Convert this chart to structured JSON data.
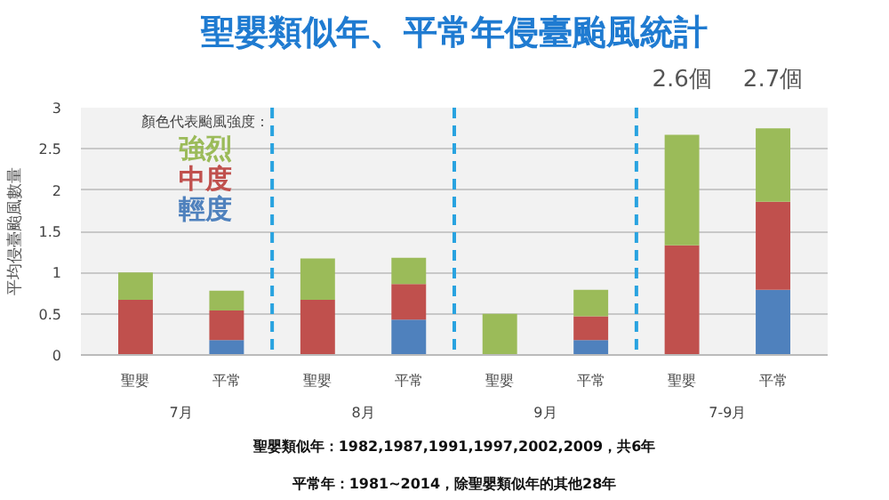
{
  "chart_data": {
    "type": "bar",
    "stacked": true,
    "title": "聖嬰類似年、平常年侵臺颱風統計",
    "ylabel": "平均侵臺颱風數量",
    "legend_title": "顏色代表颱風強度：",
    "categories": [
      "聖嬰",
      "平常",
      "聖嬰",
      "平常",
      "聖嬰",
      "平常",
      "聖嬰",
      "平常"
    ],
    "series": [
      {
        "name": "輕度",
        "color": "#4f81bd",
        "values": [
          0,
          0.18,
          0,
          0.43,
          0,
          0.18,
          0,
          0.79
        ]
      },
      {
        "name": "中度",
        "color": "#c0504d",
        "values": [
          0.67,
          0.36,
          0.67,
          0.43,
          0,
          0.29,
          1.33,
          1.07
        ]
      },
      {
        "name": "強烈",
        "color": "#9bbb59",
        "values": [
          0.33,
          0.24,
          0.5,
          0.32,
          0.5,
          0.32,
          1.34,
          0.89
        ]
      }
    ],
    "totals": [
      null,
      null,
      null,
      null,
      null,
      null,
      "2.6個",
      "2.7個"
    ],
    "ylim": [
      0,
      3
    ],
    "yticks": [
      0,
      0.5,
      1,
      1.5,
      2,
      2.5,
      3
    ],
    "grid": "y",
    "legend": "top left",
    "annotations": [
      "7月",
      "8月",
      "9月",
      "7-9月",
      "聖嬰類似年：1982,1987,1991,1997,2002,2009，共6年",
      "平常年：1981~2014，除聖嬰類似年的其他28年"
    ]
  }
}
